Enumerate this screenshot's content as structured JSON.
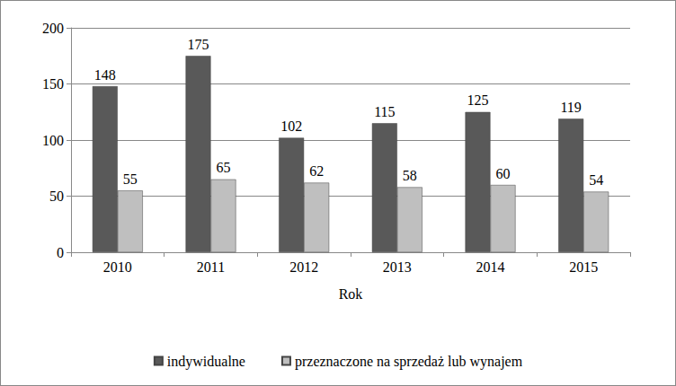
{
  "chart_data": {
    "type": "bar",
    "xlabel": "Rok",
    "categories": [
      "2010",
      "2011",
      "2012",
      "2013",
      "2014",
      "2015"
    ],
    "series": [
      {
        "name": "indywidualne",
        "color": "#595959",
        "values": [
          148,
          175,
          102,
          115,
          125,
          119
        ]
      },
      {
        "name": "przeznaczone na sprzedaż lub wynajem",
        "color": "#bfbfbf",
        "values": [
          55,
          65,
          62,
          58,
          60,
          54
        ]
      }
    ],
    "ylim": [
      0,
      200
    ],
    "yticks": [
      0,
      50,
      100,
      150,
      200
    ],
    "grid": true,
    "data_labels": true,
    "legend": "bottom"
  }
}
